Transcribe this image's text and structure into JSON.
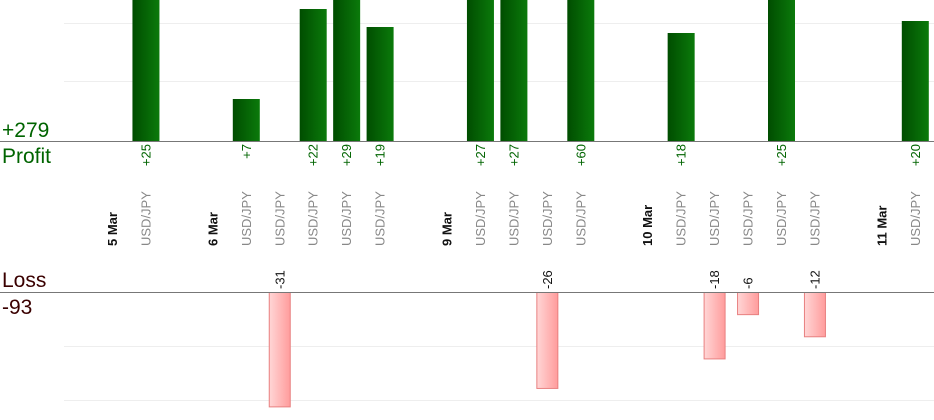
{
  "summary": {
    "profit_total": "+279",
    "profit_label": "Profit",
    "loss_label": "Loss",
    "loss_total": "-93"
  },
  "colors": {
    "profit_text": "#006400",
    "loss_text": "#3a0000",
    "profit_bar_dark": "#004d00",
    "profit_bar_light": "#0b7a0b",
    "loss_bar_light": "#ffd6d6",
    "loss_bar_dark": "#ff9c9c",
    "loss_bar_stroke": "#e88080",
    "axis": "#777777",
    "grid": "#eeeeee",
    "pair_text": "#888888"
  },
  "chart_data": {
    "type": "bar",
    "profit_ylim": [
      0,
      60
    ],
    "loss_ylim": [
      0,
      31
    ],
    "grid": true,
    "columns": [
      {
        "kind": "date",
        "label": "5 Mar"
      },
      {
        "kind": "trade",
        "label": "USD/JPY",
        "value": 25,
        "value_label": "+25"
      },
      {
        "kind": "date",
        "label": ""
      },
      {
        "kind": "date",
        "label": "6 Mar"
      },
      {
        "kind": "trade",
        "label": "USD/JPY",
        "value": 7,
        "value_label": "+7"
      },
      {
        "kind": "trade",
        "label": "USD/JPY",
        "value": -31,
        "value_label": "-31"
      },
      {
        "kind": "trade",
        "label": "USD/JPY",
        "value": 22,
        "value_label": "+22"
      },
      {
        "kind": "trade",
        "label": "USD/JPY",
        "value": 29,
        "value_label": "+29"
      },
      {
        "kind": "trade",
        "label": "USD/JPY",
        "value": 19,
        "value_label": "+19"
      },
      {
        "kind": "date",
        "label": ""
      },
      {
        "kind": "date",
        "label": "9 Mar"
      },
      {
        "kind": "trade",
        "label": "USD/JPY",
        "value": 27,
        "value_label": "+27"
      },
      {
        "kind": "trade",
        "label": "USD/JPY",
        "value": 27,
        "value_label": "+27"
      },
      {
        "kind": "trade",
        "label": "USD/JPY",
        "value": -26,
        "value_label": "-26"
      },
      {
        "kind": "trade",
        "label": "USD/JPY",
        "value": 60,
        "value_label": "+60"
      },
      {
        "kind": "date",
        "label": ""
      },
      {
        "kind": "date",
        "label": "10 Mar"
      },
      {
        "kind": "trade",
        "label": "USD/JPY",
        "value": 18,
        "value_label": "+18"
      },
      {
        "kind": "trade",
        "label": "USD/JPY",
        "value": -18,
        "value_label": "-18"
      },
      {
        "kind": "trade",
        "label": "USD/JPY",
        "value": -6,
        "value_label": "-6"
      },
      {
        "kind": "trade",
        "label": "USD/JPY",
        "value": 25,
        "value_label": "+25"
      },
      {
        "kind": "trade",
        "label": "USD/JPY",
        "value": -12,
        "value_label": "-12"
      },
      {
        "kind": "date",
        "label": ""
      },
      {
        "kind": "date",
        "label": "11 Mar"
      },
      {
        "kind": "trade",
        "label": "USD/JPY",
        "value": 20,
        "value_label": "+20"
      }
    ]
  }
}
